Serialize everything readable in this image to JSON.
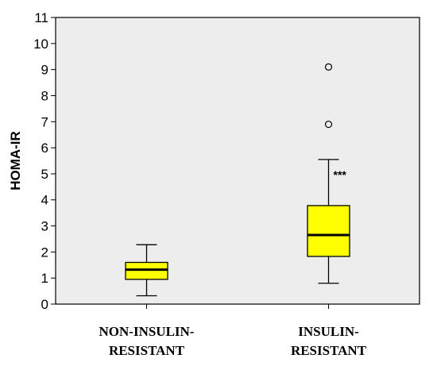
{
  "chart_data": {
    "type": "boxplot",
    "ylabel": "HOMA-IR",
    "ylim": [
      0,
      11
    ],
    "yticks": [
      0,
      1,
      2,
      3,
      4,
      5,
      6,
      7,
      8,
      9,
      10,
      11
    ],
    "grid": false,
    "plot_background": "#ededed",
    "box_color": "#ffff00",
    "categories": [
      {
        "label_lines": [
          "NON-INSULIN-",
          "RESISTANT"
        ],
        "whisker_low": 0.32,
        "q1": 0.95,
        "median": 1.32,
        "q3": 1.6,
        "whisker_high": 2.28,
        "outliers": [],
        "annotation": ""
      },
      {
        "label_lines": [
          "INSULIN-",
          "RESISTANT"
        ],
        "whisker_low": 0.8,
        "q1": 1.83,
        "median": 2.65,
        "q3": 3.78,
        "whisker_high": 5.55,
        "outliers": [
          6.9,
          9.1
        ],
        "annotation": "***"
      }
    ]
  }
}
